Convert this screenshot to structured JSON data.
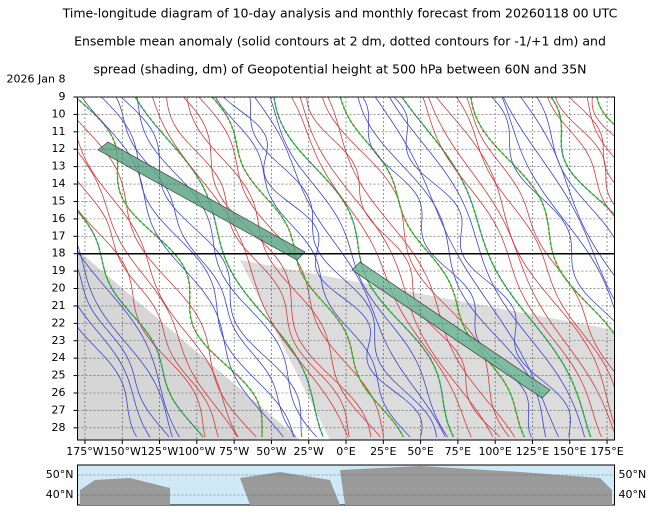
{
  "chart_data": {
    "type": "hovmoller",
    "title": [
      "Time-longitude diagram of 10-day analysis and monthly forecast from 20260118 00 UTC",
      "Ensemble mean anomaly (solid contours at 2 dm, dotted contours for -1/+1 dm) and",
      "spread (shading, dm) of Geopotential height at 500 hPa between 60N and 35N"
    ],
    "xlim": [
      -180,
      180
    ],
    "xticks": [
      {
        "value": -175,
        "label": "175°W"
      },
      {
        "value": -150,
        "label": "150°W"
      },
      {
        "value": -125,
        "label": "125°W"
      },
      {
        "value": -100,
        "label": "100°W"
      },
      {
        "value": -75,
        "label": "75°W"
      },
      {
        "value": -50,
        "label": "50°W"
      },
      {
        "value": -25,
        "label": "25°W"
      },
      {
        "value": 0,
        "label": "0°E"
      },
      {
        "value": 25,
        "label": "25°E"
      },
      {
        "value": 50,
        "label": "50°E"
      },
      {
        "value": 75,
        "label": "75°E"
      },
      {
        "value": 100,
        "label": "100°E"
      },
      {
        "value": 125,
        "label": "125°E"
      },
      {
        "value": 150,
        "label": "150°E"
      },
      {
        "value": 175,
        "label": "175°E"
      }
    ],
    "ylim": [
      9,
      28.7
    ],
    "yticks": [
      {
        "value": 8,
        "label": "2026 Jan  8"
      },
      9,
      10,
      11,
      12,
      13,
      14,
      15,
      16,
      17,
      18,
      19,
      20,
      21,
      22,
      23,
      24,
      25,
      26,
      27,
      28
    ],
    "highlight_days": [
      11,
      18,
      25
    ],
    "highlight_color": "#e00000",
    "forecast_start": 18,
    "map_yticks": [
      {
        "value": 50,
        "label": "50°N"
      },
      {
        "value": 40,
        "label": "40°N"
      }
    ]
  }
}
